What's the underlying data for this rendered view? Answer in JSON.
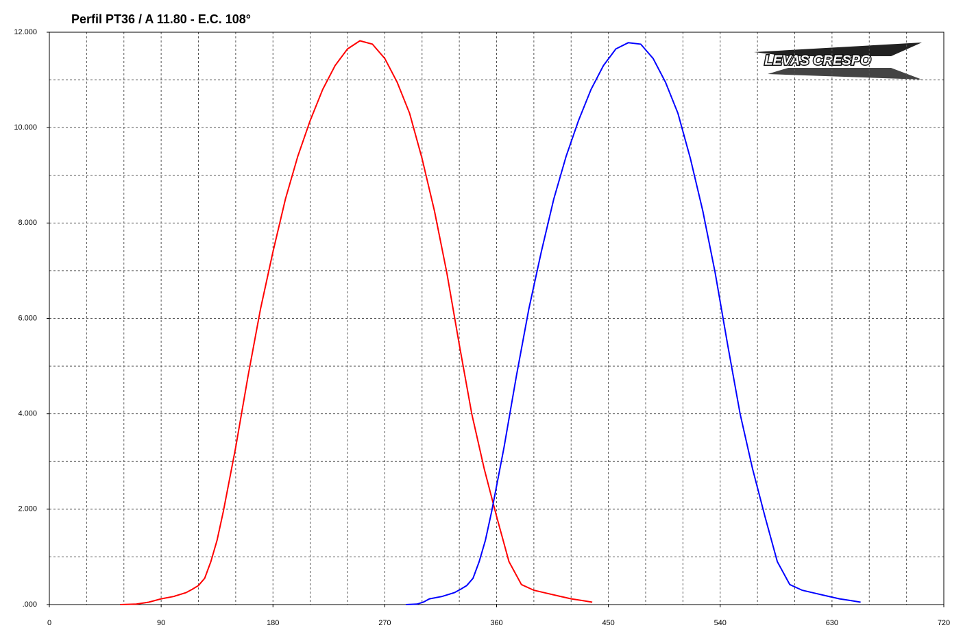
{
  "chart_data": {
    "type": "line",
    "title": "Perfil PT36 / A 11.80 - E.C. 108°",
    "logo": "LEVAS CRESPO",
    "xlim": [
      0,
      720
    ],
    "xticks": [
      0,
      90,
      180,
      270,
      360,
      450,
      540,
      630,
      720
    ],
    "ylim": [
      0,
      12
    ],
    "yticks": [
      {
        "value": 0,
        "label": ".000"
      },
      {
        "value": 2,
        "label": "2.000"
      },
      {
        "value": 4,
        "label": "4.000"
      },
      {
        "value": 6,
        "label": "6.000"
      },
      {
        "value": 8,
        "label": "8.000"
      },
      {
        "value": 10,
        "label": "10.000"
      },
      {
        "value": 12,
        "label": "12.000"
      }
    ],
    "xgrid": [
      30,
      60,
      90,
      120,
      150,
      180,
      210,
      240,
      270,
      300,
      330,
      360,
      390,
      420,
      450,
      480,
      510,
      540,
      570,
      600,
      630,
      660,
      690
    ],
    "ygrid": [
      1,
      2,
      3,
      4,
      5,
      6,
      7,
      8,
      9,
      10,
      11
    ],
    "grid": true,
    "series": [
      {
        "color": "#ff0000",
        "x": [
          57,
          70,
          80,
          90,
          100,
          110,
          115,
          120,
          125,
          130,
          135,
          140,
          150,
          160,
          170,
          180,
          190,
          200,
          210,
          220,
          230,
          240,
          250,
          260,
          270,
          280,
          290,
          300,
          310,
          320,
          330,
          340,
          350,
          360,
          370,
          380,
          390,
          400,
          410,
          420,
          430,
          437
        ],
        "values": [
          0,
          0.01,
          0.05,
          0.12,
          0.17,
          0.25,
          0.32,
          0.4,
          0.55,
          0.9,
          1.35,
          1.95,
          3.3,
          4.8,
          6.2,
          7.4,
          8.5,
          9.4,
          10.15,
          10.8,
          11.3,
          11.65,
          11.82,
          11.75,
          11.45,
          10.95,
          10.3,
          9.35,
          8.25,
          6.95,
          5.45,
          4.0,
          2.85,
          1.85,
          0.9,
          0.42,
          0.3,
          0.24,
          0.18,
          0.12,
          0.08,
          0.05
        ]
      },
      {
        "color": "#0000ff",
        "x": [
          287,
          296,
          301,
          306,
          316,
          326,
          331,
          336,
          341,
          346,
          351,
          356,
          366,
          376,
          386,
          396,
          406,
          416,
          426,
          436,
          446,
          456,
          466,
          476,
          486,
          496,
          506,
          516,
          526,
          536,
          546,
          556,
          566,
          576,
          586,
          596,
          606,
          616,
          626,
          636,
          646,
          653
        ],
        "values": [
          0,
          0.01,
          0.05,
          0.12,
          0.17,
          0.25,
          0.32,
          0.4,
          0.55,
          0.9,
          1.35,
          1.95,
          3.3,
          4.8,
          6.2,
          7.4,
          8.5,
          9.4,
          10.15,
          10.8,
          11.3,
          11.65,
          11.78,
          11.75,
          11.45,
          10.95,
          10.3,
          9.35,
          8.25,
          6.95,
          5.45,
          4.0,
          2.85,
          1.85,
          0.9,
          0.42,
          0.3,
          0.24,
          0.18,
          0.12,
          0.08,
          0.05
        ]
      }
    ]
  }
}
